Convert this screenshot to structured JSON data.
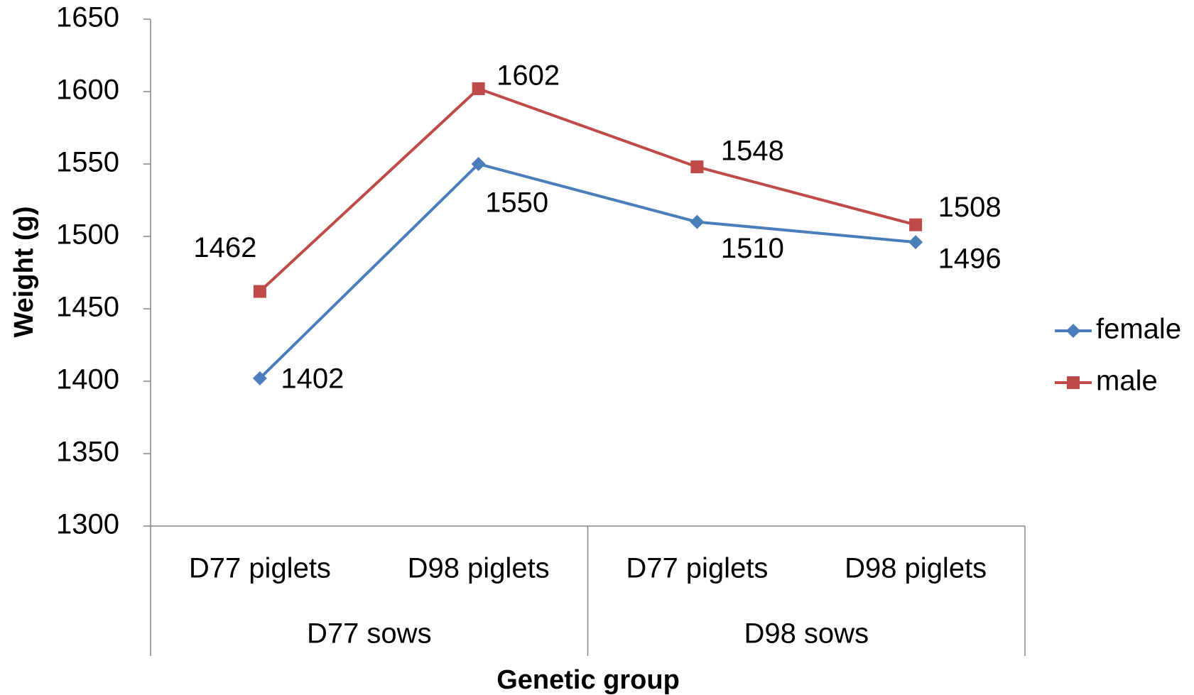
{
  "chart_data": {
    "type": "line",
    "x_title": "Genetic group",
    "y_title": "Weight (g)",
    "categories": [
      "D77 piglets",
      "D98 piglets",
      "D77 piglets",
      "D98 piglets"
    ],
    "groups": [
      "D77 sows",
      "D98 sows"
    ],
    "series": [
      {
        "name": "female",
        "color": "#4a7ebb",
        "marker": "diamond",
        "values": [
          1402,
          1550,
          1510,
          1496
        ]
      },
      {
        "name": "male",
        "color": "#be4b48",
        "marker": "square",
        "values": [
          1462,
          1602,
          1548,
          1508
        ]
      }
    ],
    "ylim": [
      1300,
      1650
    ],
    "yticks": [
      1300,
      1350,
      1400,
      1450,
      1500,
      1550,
      1600,
      1650
    ],
    "grid": false,
    "legend": "right"
  }
}
